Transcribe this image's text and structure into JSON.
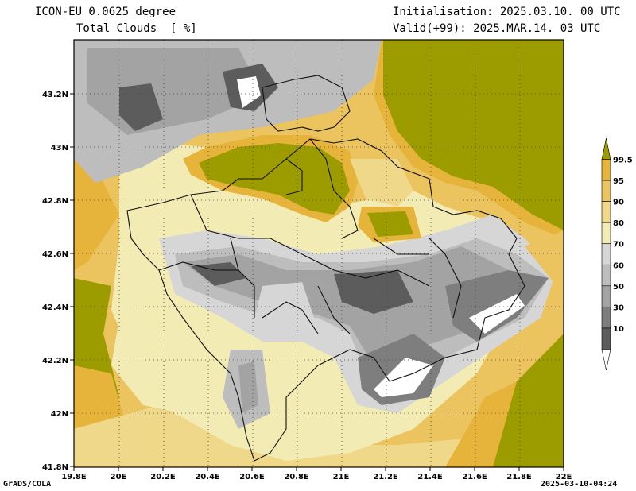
{
  "header": {
    "model": "ICON-EU 0.0625 degree",
    "variable": "Total Clouds  [ %]",
    "init": "Initialisation: 2025.03.10. 00 UTC",
    "valid": "Valid(+99): 2025.MAR.14. 03 UTC"
  },
  "map": {
    "lon_ticks": [
      "19.8E",
      "20E",
      "20.2E",
      "20.4E",
      "20.6E",
      "20.8E",
      "21E",
      "21.2E",
      "21.4E",
      "21.6E",
      "21.8E",
      "22E"
    ],
    "lat_ticks": [
      "43.2N",
      "43N",
      "42.8N",
      "42.6N",
      "42.4N",
      "42.2N",
      "42N",
      "41.8N"
    ]
  },
  "colorbar": {
    "labels": [
      "99.5",
      "95",
      "90",
      "80",
      "70",
      "60",
      "50",
      "30",
      "10"
    ],
    "colors": [
      "#9c9c00",
      "#e6b43a",
      "#ebc35f",
      "#f0d88a",
      "#f2ecb4",
      "#d6d6d6",
      "#bdbdbd",
      "#a3a3a3",
      "#7e7e7e",
      "#5c5c5c",
      "#ffffff"
    ]
  },
  "footer": {
    "left": "GrADS/COLA",
    "right": "2025-03-10-04:24"
  }
}
